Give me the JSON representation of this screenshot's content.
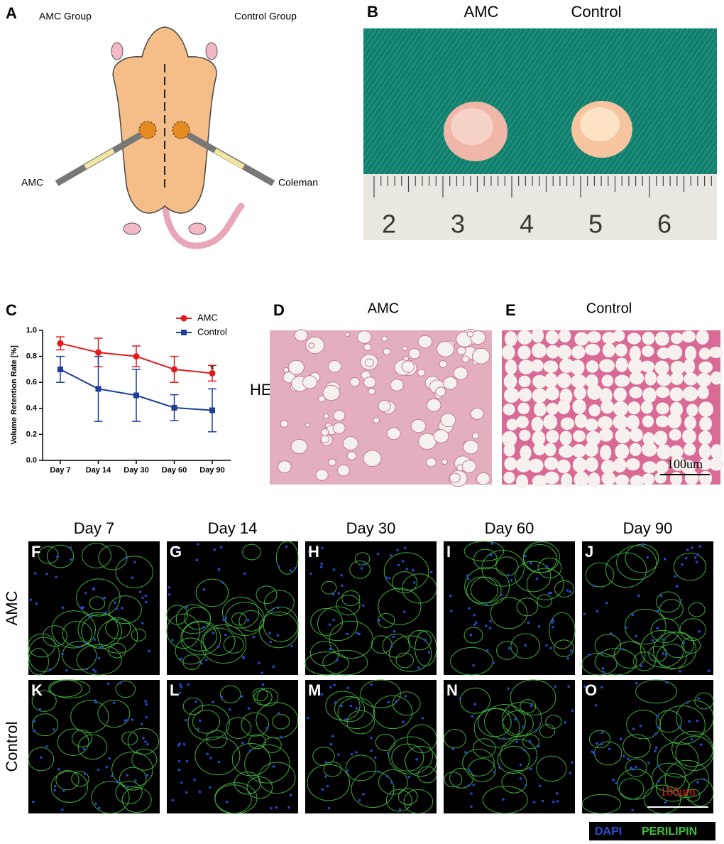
{
  "panel_a": {
    "letter": "A",
    "left_label": "AMC Group",
    "right_label": "Control Group",
    "left_syringe": "AMC",
    "right_syringe": "Coleman"
  },
  "panel_b": {
    "letter": "B",
    "labels": [
      "AMC",
      "Control"
    ],
    "ruler": [
      "2",
      "3",
      "4",
      "5",
      "6"
    ]
  },
  "chart_data": {
    "type": "line",
    "letter": "C",
    "y_label": "Volume Retention Rate [%]",
    "categories": [
      "Day 7",
      "Day 14",
      "Day 30",
      "Day 60",
      "Day 90"
    ],
    "series": [
      {
        "name": "AMC",
        "color": "#e31a1c",
        "values": [
          0.9,
          0.83,
          0.8,
          0.7,
          0.67
        ],
        "errors": [
          0.05,
          0.11,
          0.08,
          0.1,
          0.06
        ]
      },
      {
        "name": "Control",
        "color": "#1f3c99",
        "values": [
          0.7,
          0.55,
          0.5,
          0.405,
          0.385
        ],
        "errors": [
          0.1,
          0.25,
          0.2,
          0.1,
          0.165
        ]
      }
    ],
    "ylim": [
      0,
      1
    ],
    "yticks": [
      {
        "value": 0,
        "label": "0.0"
      },
      {
        "value": 0.2,
        "label": "0.2"
      },
      {
        "value": 0.4,
        "label": "0.4"
      },
      {
        "value": 0.6,
        "label": "0.6"
      },
      {
        "value": 0.8,
        "label": "0.8"
      },
      {
        "value": 1,
        "label": "1.0"
      }
    ],
    "annotation": "*"
  },
  "panel_de": {
    "row_label": "HE",
    "d": {
      "letter": "D",
      "title": "AMC"
    },
    "e": {
      "letter": "E",
      "title": "Control",
      "scale": "100um"
    }
  },
  "fluorescence": {
    "columns": [
      "Day 7",
      "Day 14",
      "Day 30",
      "Day 60",
      "Day 90"
    ],
    "rows": [
      {
        "label": "AMC",
        "letters": [
          "F",
          "G",
          "H",
          "I",
          "J"
        ]
      },
      {
        "label": "Control",
        "letters": [
          "K",
          "L",
          "M",
          "N",
          "O"
        ]
      }
    ],
    "scale": "100um",
    "legend": [
      "DAPI",
      "PERILIPIN"
    ]
  }
}
